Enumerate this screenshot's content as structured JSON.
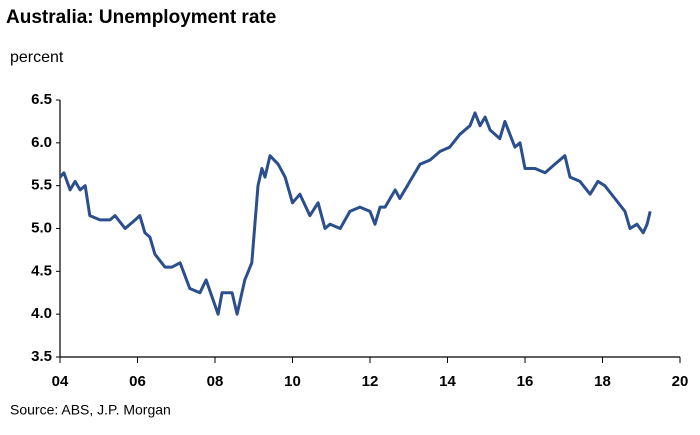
{
  "chart_data": {
    "type": "line",
    "title": "Australia: Unemployment rate",
    "subtitle": "percent",
    "source": "Source: ABS, J.P. Morgan",
    "x": [
      2004.0,
      2004.1,
      2004.26,
      2004.39,
      2004.52,
      2004.65,
      2004.77,
      2005.03,
      2005.29,
      2005.42,
      2005.68,
      2005.94,
      2006.06,
      2006.19,
      2006.32,
      2006.45,
      2006.71,
      2006.89,
      2007.1,
      2007.35,
      2007.61,
      2007.77,
      2008.08,
      2008.18,
      2008.44,
      2008.57,
      2008.77,
      2008.95,
      2009.11,
      2009.21,
      2009.29,
      2009.42,
      2009.63,
      2009.81,
      2010.0,
      2010.19,
      2010.45,
      2010.66,
      2010.84,
      2010.97,
      2011.23,
      2011.48,
      2011.74,
      2012.0,
      2012.13,
      2012.26,
      2012.39,
      2012.65,
      2012.77,
      2013.03,
      2013.29,
      2013.55,
      2013.81,
      2014.06,
      2014.32,
      2014.58,
      2014.71,
      2014.84,
      2014.97,
      2015.1,
      2015.35,
      2015.48,
      2015.61,
      2015.74,
      2015.87,
      2016.0,
      2016.26,
      2016.52,
      2016.77,
      2017.03,
      2017.16,
      2017.42,
      2017.68,
      2017.88,
      2018.06,
      2018.32,
      2018.58,
      2018.71,
      2018.89,
      2019.05,
      2019.15,
      2019.23
    ],
    "series": [
      {
        "name": "Unemployment rate",
        "color": "#2b4f8c",
        "values": [
          5.6,
          5.65,
          5.45,
          5.55,
          5.45,
          5.5,
          5.15,
          5.1,
          5.1,
          5.15,
          5.0,
          5.1,
          5.15,
          4.95,
          4.9,
          4.7,
          4.55,
          4.55,
          4.6,
          4.3,
          4.25,
          4.4,
          4.0,
          4.25,
          4.25,
          4.0,
          4.4,
          4.6,
          5.5,
          5.7,
          5.6,
          5.85,
          5.75,
          5.6,
          5.3,
          5.4,
          5.15,
          5.3,
          5.0,
          5.05,
          5.0,
          5.2,
          5.25,
          5.2,
          5.05,
          5.25,
          5.25,
          5.45,
          5.35,
          5.55,
          5.75,
          5.8,
          5.9,
          5.95,
          6.1,
          6.2,
          6.35,
          6.2,
          6.3,
          6.15,
          6.05,
          6.25,
          6.1,
          5.95,
          6.0,
          5.7,
          5.7,
          5.65,
          5.75,
          5.85,
          5.6,
          5.55,
          5.4,
          5.55,
          5.5,
          5.35,
          5.2,
          5.0,
          5.05,
          4.95,
          5.05,
          5.2
        ]
      }
    ],
    "xlim": [
      2004,
      2020
    ],
    "xticks": [
      {
        "value": 2004,
        "label": "04"
      },
      {
        "value": 2006,
        "label": "06"
      },
      {
        "value": 2008,
        "label": "08"
      },
      {
        "value": 2010,
        "label": "10"
      },
      {
        "value": 2012,
        "label": "12"
      },
      {
        "value": 2014,
        "label": "14"
      },
      {
        "value": 2016,
        "label": "16"
      },
      {
        "value": 2018,
        "label": "18"
      },
      {
        "value": 2020,
        "label": "20"
      }
    ],
    "ylim": [
      3.5,
      6.5
    ],
    "yticks": [
      3.5,
      {
        "value": 4,
        "label": "4.0"
      },
      4.5,
      {
        "value": 5,
        "label": "5.0"
      },
      5.5,
      {
        "value": 6,
        "label": "6.0"
      },
      6.5
    ],
    "grid": false
  }
}
